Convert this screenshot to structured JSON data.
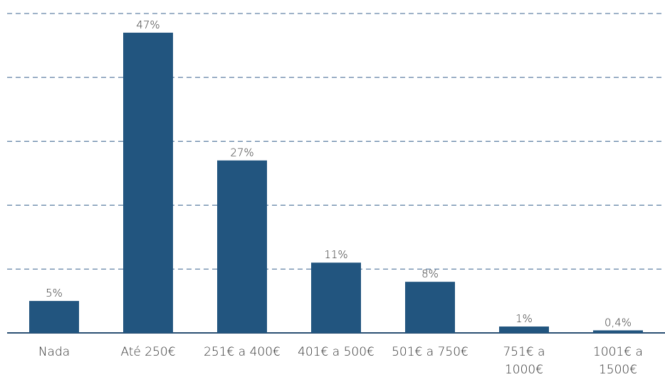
{
  "chart_data": {
    "type": "bar",
    "categories": [
      "Nada",
      "Até 250€",
      "251€ a 400€",
      "401€ a 500€",
      "501€ a 750€",
      "751€ a 1000€",
      "1001€ a 1500€"
    ],
    "values": [
      5,
      47,
      27,
      11,
      8,
      1,
      0.4
    ],
    "value_labels": [
      "5%",
      "47%",
      "27%",
      "11%",
      "8%",
      "1%",
      "0,4%"
    ],
    "color": "#22557f",
    "ylim": [
      0,
      50
    ],
    "yticks": [
      0,
      10,
      20,
      30,
      40,
      50
    ],
    "grid": true
  }
}
